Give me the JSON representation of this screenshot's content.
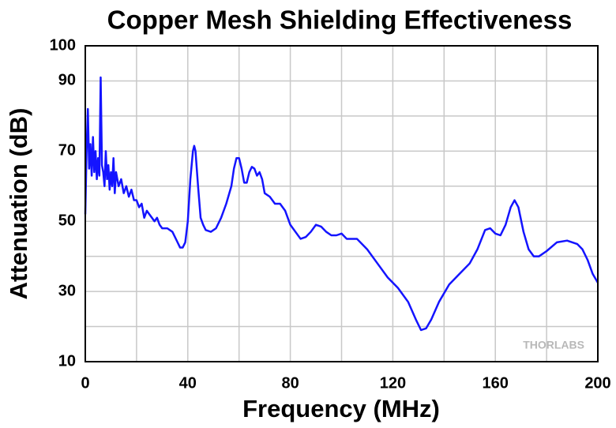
{
  "chart_data": {
    "type": "line",
    "title": "Copper Mesh Shielding Effectiveness",
    "x_label": "Frequency (MHz)",
    "y_label": "Attenuation (dB)",
    "watermark": "THORLABS",
    "x": [
      0,
      0.5,
      1,
      1.5,
      2,
      2.5,
      3,
      3.5,
      4,
      4.5,
      5,
      5.5,
      6,
      6.5,
      7,
      7.5,
      8,
      8.5,
      9,
      9.5,
      10,
      10.5,
      11,
      11.5,
      12,
      13,
      14,
      15,
      16,
      17,
      18,
      19,
      20,
      21,
      22,
      23,
      24,
      25,
      26,
      27,
      28,
      29,
      30,
      32,
      34,
      36,
      37,
      38,
      39,
      40,
      41,
      42,
      42.5,
      43,
      44,
      45,
      46,
      47,
      49,
      51,
      53,
      55,
      57,
      58,
      59,
      60,
      61,
      62,
      63,
      64,
      65,
      66,
      67,
      68,
      69,
      70,
      72,
      74,
      76,
      78,
      80,
      82,
      84,
      86,
      88,
      90,
      92,
      94,
      96,
      98,
      100,
      102,
      106,
      110,
      114,
      118,
      122,
      126,
      129,
      131,
      133,
      135,
      138,
      142,
      146,
      150,
      153,
      156,
      158,
      160,
      162,
      164,
      166,
      167.5,
      169,
      171,
      173,
      175,
      177,
      180,
      184,
      188,
      192,
      194,
      196,
      198,
      200
    ],
    "series": [
      {
        "name": "Attenuation",
        "color": "#1414ff",
        "values": [
          52,
          70,
          82,
          65,
          72,
          63,
          74,
          64,
          70,
          62,
          68,
          63,
          91,
          66,
          64,
          60,
          70,
          62,
          66,
          59,
          64,
          60,
          68,
          58,
          64,
          60,
          62,
          58,
          60,
          57,
          59,
          56,
          56,
          54,
          55,
          51,
          53,
          52,
          51,
          50,
          51,
          49,
          48,
          48,
          47,
          44,
          42.5,
          42.5,
          44,
          50,
          62,
          70,
          71.5,
          70,
          60,
          51,
          49,
          47.5,
          47,
          48,
          51,
          55,
          60,
          65,
          68,
          68,
          65,
          61,
          61,
          64,
          65.5,
          65,
          63,
          64,
          62,
          58,
          57,
          55,
          55,
          53,
          49,
          47,
          45,
          45.5,
          47,
          49,
          48.5,
          47,
          46,
          46,
          46.5,
          45,
          45,
          42,
          38,
          34,
          31,
          27,
          22,
          19,
          19.5,
          22,
          27,
          32,
          35,
          38,
          42,
          47.5,
          48,
          46.5,
          46,
          49,
          54,
          56,
          54,
          47,
          42,
          40,
          40,
          41.5,
          44,
          44.5,
          43.5,
          42,
          39,
          35,
          32.5
        ]
      }
    ],
    "xlim": [
      0,
      200
    ],
    "xticks": [
      0,
      40,
      80,
      120,
      160,
      200
    ],
    "xminor_ticks": [
      20,
      60,
      100,
      140,
      180
    ],
    "ylim": [
      10,
      100
    ],
    "yticks": [
      10,
      30,
      50,
      70,
      90,
      100
    ],
    "yminor_ticks": [
      20,
      40,
      60,
      80
    ],
    "grid": true
  }
}
